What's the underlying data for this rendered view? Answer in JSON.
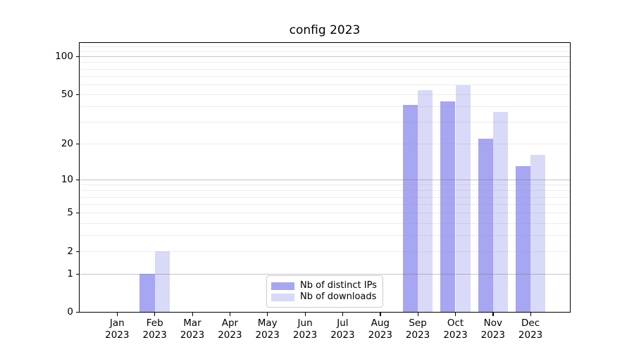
{
  "chart_data": {
    "type": "bar",
    "title": "config 2023",
    "xlabel": "",
    "ylabel": "",
    "categories": [
      "Jan",
      "Feb",
      "Mar",
      "Apr",
      "May",
      "Jun",
      "Jul",
      "Aug",
      "Sep",
      "Oct",
      "Nov",
      "Dec"
    ],
    "category_year": "2023",
    "series": [
      {
        "name": "Nb of distinct IPs",
        "color": "#a6a6f2",
        "values": [
          0,
          1,
          0,
          0,
          0,
          0,
          0,
          0,
          41,
          44,
          22,
          13
        ]
      },
      {
        "name": "Nb of downloads",
        "color": "#d9d9f8",
        "values": [
          0,
          2,
          0,
          0,
          0,
          0,
          0,
          0,
          54,
          59,
          36,
          16
        ]
      }
    ],
    "y_axis": {
      "scale": "log1p",
      "ticks": [
        0,
        1,
        2,
        5,
        10,
        20,
        50,
        100
      ],
      "major_gridlines": [
        1,
        10,
        100
      ],
      "minor_gridlines": [
        3,
        4,
        6,
        7,
        8,
        9,
        30,
        40,
        60,
        70,
        80,
        90,
        110,
        120
      ],
      "range": [
        0,
        128
      ]
    },
    "legend": {
      "position": "lower center"
    },
    "grid": true
  }
}
